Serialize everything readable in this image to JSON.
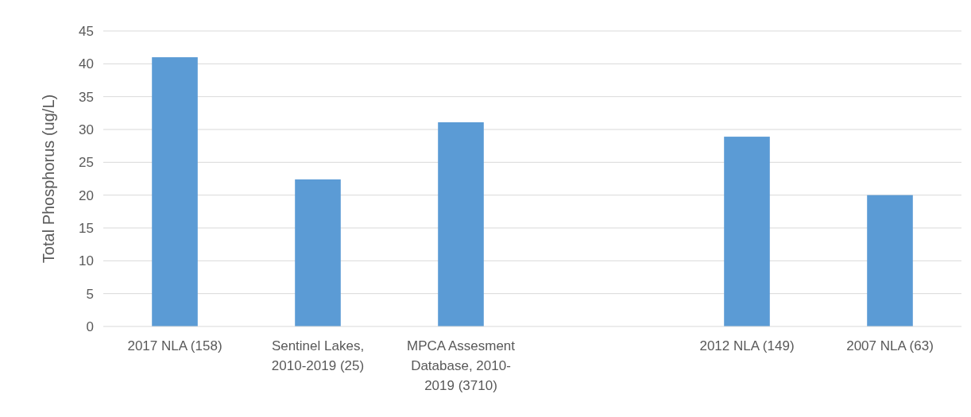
{
  "chart_data": {
    "type": "bar",
    "ylabel": "Total Phosphorus (ug/L)",
    "categories": [
      "2017 NLA (158)",
      "Sentinel Lakes, 2010-2019 (25)",
      "MPCA Assesment Database, 2010-2019 (3710)",
      null,
      "2012 NLA (149)",
      "2007 NLA (63)"
    ],
    "values": [
      41,
      22.4,
      31.1,
      null,
      28.9,
      20
    ],
    "color": "#5b9bd5",
    "ylim": [
      0,
      45
    ],
    "yticks": [
      0,
      5,
      10,
      15,
      20,
      25,
      30,
      35,
      40,
      45
    ],
    "grid": "y"
  }
}
